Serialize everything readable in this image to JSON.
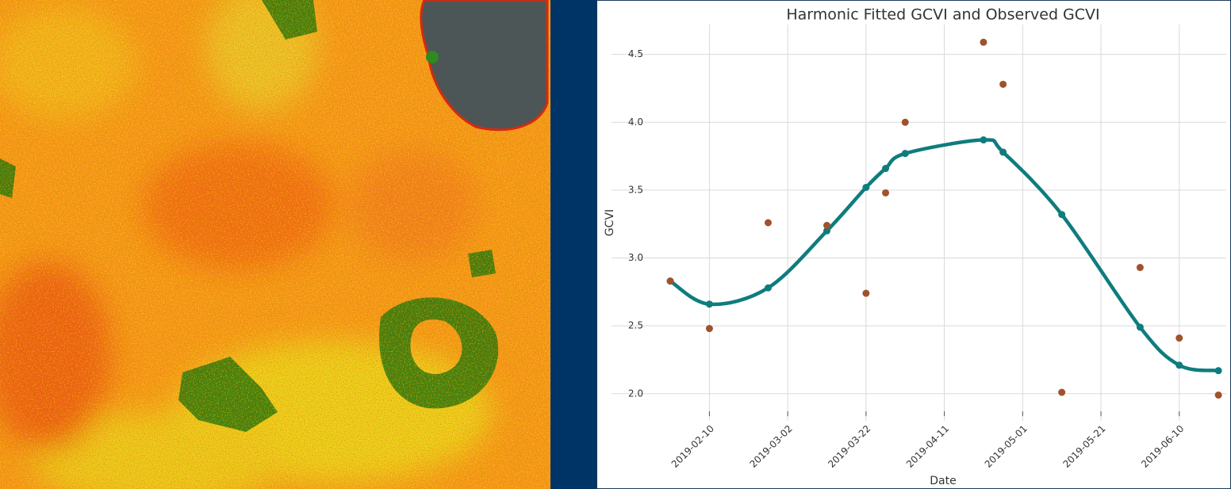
{
  "chart_data": {
    "type": "line",
    "title": "Harmonic Fitted GCVI and Observed GCVI",
    "x_label": "Date",
    "y_label": "GCVI",
    "x": [
      "2019-01-31",
      "2019-02-10",
      "2019-02-25",
      "2019-03-12",
      "2019-03-22",
      "2019-03-27",
      "2019-04-01",
      "2019-04-21",
      "2019-04-26",
      "2019-05-11",
      "2019-05-31",
      "2019-06-10",
      "2019-06-20"
    ],
    "series": [
      {
        "style": "line",
        "color": "#0f7c7d",
        "values": [
          2.83,
          2.66,
          2.78,
          3.2,
          3.52,
          3.66,
          3.77,
          3.87,
          3.78,
          3.32,
          2.49,
          2.21,
          2.17
        ]
      },
      {
        "style": "points",
        "color": "#a0522d",
        "values": [
          2.83,
          2.48,
          3.26,
          3.24,
          2.74,
          3.48,
          4.0,
          4.59,
          4.28,
          2.01,
          2.93,
          2.41,
          1.99
        ]
      }
    ],
    "xlim": [
      "2019-01-16",
      "2019-06-22"
    ],
    "xticks": [
      "2019-02-10",
      "2019-03-02",
      "2019-03-22",
      "2019-04-11",
      "2019-05-01",
      "2019-05-21",
      "2019-06-10"
    ],
    "ylim": [
      1.8,
      4.72
    ],
    "yticks": [
      {
        "value": 2,
        "label": "2.0"
      },
      2.5,
      {
        "value": 3,
        "label": "3.0"
      },
      3.5,
      {
        "value": 4,
        "label": "4.0"
      },
      4.5
    ],
    "grid": true
  }
}
